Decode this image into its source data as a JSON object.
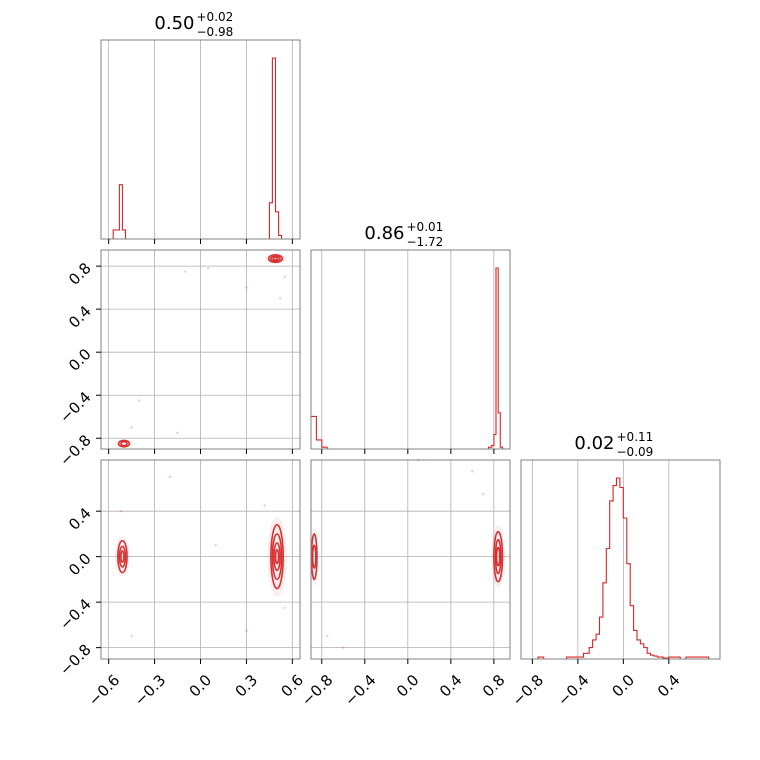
{
  "colors": {
    "line": "#d62728",
    "grid": "#b0b0b0",
    "frame": "#808080",
    "text": "#000000"
  },
  "chart_data": {
    "type": "corner",
    "grid": true,
    "parameters": [
      {
        "title_value": "0.50",
        "title_plus": "+0.02",
        "title_minus": "−0.98",
        "range": [
          -0.65,
          0.65
        ]
      },
      {
        "title_value": "0.86",
        "title_plus": "+0.01",
        "title_minus": "−1.72",
        "range": [
          -0.9,
          0.95
        ]
      },
      {
        "title_value": "0.02",
        "title_plus": "+0.11",
        "title_minus": "−0.09",
        "range": [
          -0.9,
          0.85
        ]
      }
    ],
    "x_ticks": [
      [
        "−0.6",
        "−0.3",
        "0.0",
        "0.3",
        "0.6"
      ],
      [
        "−0.8",
        "−0.4",
        "0.0",
        "0.4",
        "0.8"
      ],
      [
        "−0.8",
        "−0.4",
        "0.0",
        "0.4"
      ]
    ],
    "x_tick_values": [
      [
        -0.6,
        -0.3,
        0.0,
        0.3,
        0.6
      ],
      [
        -0.8,
        -0.4,
        0.0,
        0.4,
        0.8
      ],
      [
        -0.8,
        -0.4,
        0.0,
        0.4
      ]
    ],
    "y_ticks": {
      "row1": [
        "−0.8",
        "−0.4",
        "0.0",
        "0.4",
        "0.8"
      ],
      "row2": [
        "−0.8",
        "−0.4",
        "0.0",
        "0.4"
      ]
    },
    "y_tick_values": {
      "row1": [
        -0.8,
        -0.4,
        0.0,
        0.4,
        0.8
      ],
      "row2": [
        -0.8,
        -0.4,
        0.0,
        0.4
      ]
    },
    "hist_1": {
      "edges": [
        -0.65,
        -0.61,
        -0.57,
        -0.53,
        -0.51,
        -0.49,
        -0.47,
        -0.45,
        -0.43,
        0.43,
        0.45,
        0.47,
        0.49,
        0.51,
        0.53,
        0.55,
        0.57,
        0.65
      ],
      "counts": [
        0,
        0,
        0.05,
        0.3,
        0.05,
        0,
        0,
        0,
        0,
        0,
        0.2,
        1.0,
        0.15,
        0.02,
        0,
        0,
        0
      ]
    },
    "hist_2": {
      "edges": [
        -0.9,
        -0.85,
        -0.8,
        -0.75,
        -0.7,
        0.75,
        0.78,
        0.8,
        0.82,
        0.84,
        0.86,
        0.88,
        0.9,
        0.95
      ],
      "counts": [
        0.18,
        0.05,
        0.01,
        0,
        0,
        0.01,
        0.02,
        0.08,
        1.0,
        0.2,
        0.01,
        0,
        0
      ]
    },
    "hist_3": {
      "edges": [
        -0.9,
        -0.75,
        -0.7,
        -0.65,
        -0.5,
        -0.35,
        -0.3,
        -0.27,
        -0.24,
        -0.21,
        -0.18,
        -0.15,
        -0.12,
        -0.09,
        -0.06,
        -0.03,
        0.0,
        0.03,
        0.06,
        0.09,
        0.12,
        0.15,
        0.18,
        0.21,
        0.24,
        0.27,
        0.3,
        0.35,
        0.4,
        0.5,
        0.55,
        0.6,
        0.65,
        0.75,
        0.85
      ],
      "counts": [
        0,
        0.01,
        0,
        0,
        0.01,
        0.03,
        0.06,
        0.1,
        0.13,
        0.22,
        0.4,
        0.58,
        0.83,
        0.91,
        0.95,
        0.9,
        0.74,
        0.5,
        0.28,
        0.15,
        0.1,
        0.08,
        0.06,
        0.03,
        0.02,
        0.015,
        0.01,
        0.005,
        0.01,
        0,
        0.01,
        0.01,
        0.01,
        0
      ]
    },
    "scatter_21": {
      "clusters": [
        {
          "x": 0.49,
          "y": 0.87,
          "level_radii": [
            [
              0.045,
              0.035
            ],
            [
              0.03,
              0.022
            ],
            [
              0.015,
              0.012
            ]
          ]
        },
        {
          "x": -0.5,
          "y": -0.85,
          "level_radii": [
            [
              0.035,
              0.03
            ],
            [
              0.02,
              0.018
            ]
          ]
        }
      ],
      "outliers": [
        [
          -0.1,
          0.75
        ],
        [
          0.05,
          0.78
        ],
        [
          0.3,
          0.6
        ],
        [
          -0.4,
          -0.45
        ],
        [
          -0.15,
          -0.75
        ],
        [
          0.55,
          0.7
        ],
        [
          0.52,
          0.5
        ],
        [
          -0.45,
          -0.7
        ]
      ]
    },
    "scatter_31": {
      "clusters": [
        {
          "x": 0.5,
          "y": 0.0,
          "level_radii": [
            [
              0.04,
              0.28
            ],
            [
              0.03,
              0.2
            ],
            [
              0.02,
              0.12
            ],
            [
              0.01,
              0.06
            ]
          ]
        },
        {
          "x": -0.51,
          "y": 0.0,
          "level_radii": [
            [
              0.03,
              0.14
            ],
            [
              0.02,
              0.09
            ],
            [
              0.01,
              0.05
            ]
          ]
        }
      ],
      "outliers": [
        [
          -0.2,
          0.7
        ],
        [
          0.3,
          -0.65
        ],
        [
          -0.45,
          -0.7
        ],
        [
          0.42,
          0.45
        ],
        [
          0.55,
          -0.45
        ],
        [
          -0.52,
          0.4
        ],
        [
          0.1,
          0.1
        ]
      ]
    },
    "scatter_32": {
      "clusters": [
        {
          "x": 0.84,
          "y": 0.0,
          "level_radii": [
            [
              0.04,
              0.22
            ],
            [
              0.025,
              0.15
            ],
            [
              0.015,
              0.08
            ]
          ]
        },
        {
          "x": -0.87,
          "y": 0.0,
          "level_radii": [
            [
              0.025,
              0.2
            ],
            [
              0.015,
              0.1
            ]
          ]
        }
      ],
      "outliers": [
        [
          0.6,
          0.75
        ],
        [
          -0.75,
          -0.7
        ],
        [
          0.7,
          0.55
        ],
        [
          -0.6,
          -0.8
        ],
        [
          0.1,
          0.85
        ]
      ]
    }
  }
}
